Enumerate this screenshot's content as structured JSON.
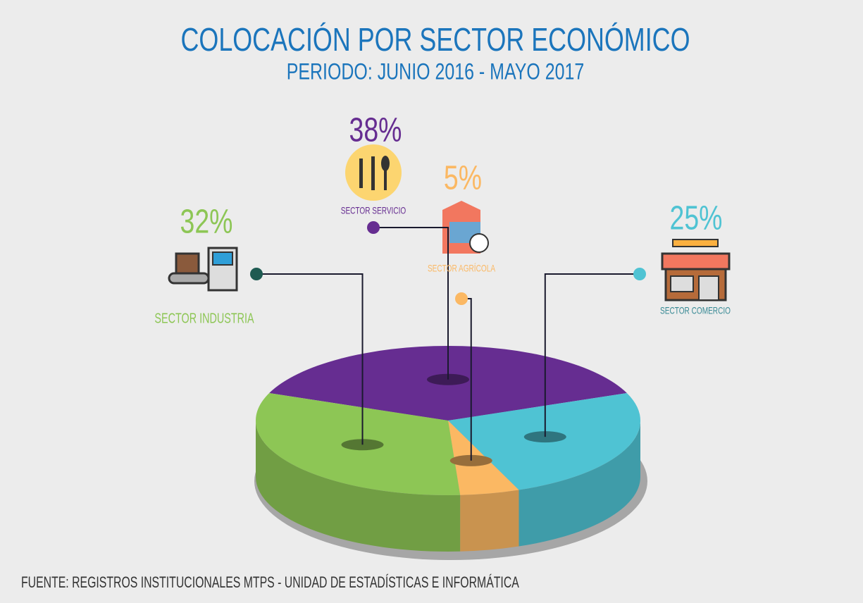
{
  "chart_data": {
    "type": "pie",
    "title": "COLOCACIÓN POR SECTOR ECONÓMICO",
    "subtitle": "PERIODO: JUNIO 2016 - MAYO 2017",
    "categories": [
      "SECTOR SERVICIO",
      "SECTOR COMERCIO",
      "SECTOR AGRÍCOLA",
      "SECTOR INDUSTRIA"
    ],
    "values": [
      38,
      25,
      5,
      32
    ],
    "value_labels": [
      "38%",
      "25%",
      "5%",
      "32%"
    ],
    "colors": [
      "#662d91",
      "#4fc3d3",
      "#fbb863",
      "#8dc655"
    ],
    "source": "FUENTE: REGISTROS INSTITUCIONALES MTPS - UNIDAD DE ESTADÍSTICAS E INFORMÁTICA"
  }
}
